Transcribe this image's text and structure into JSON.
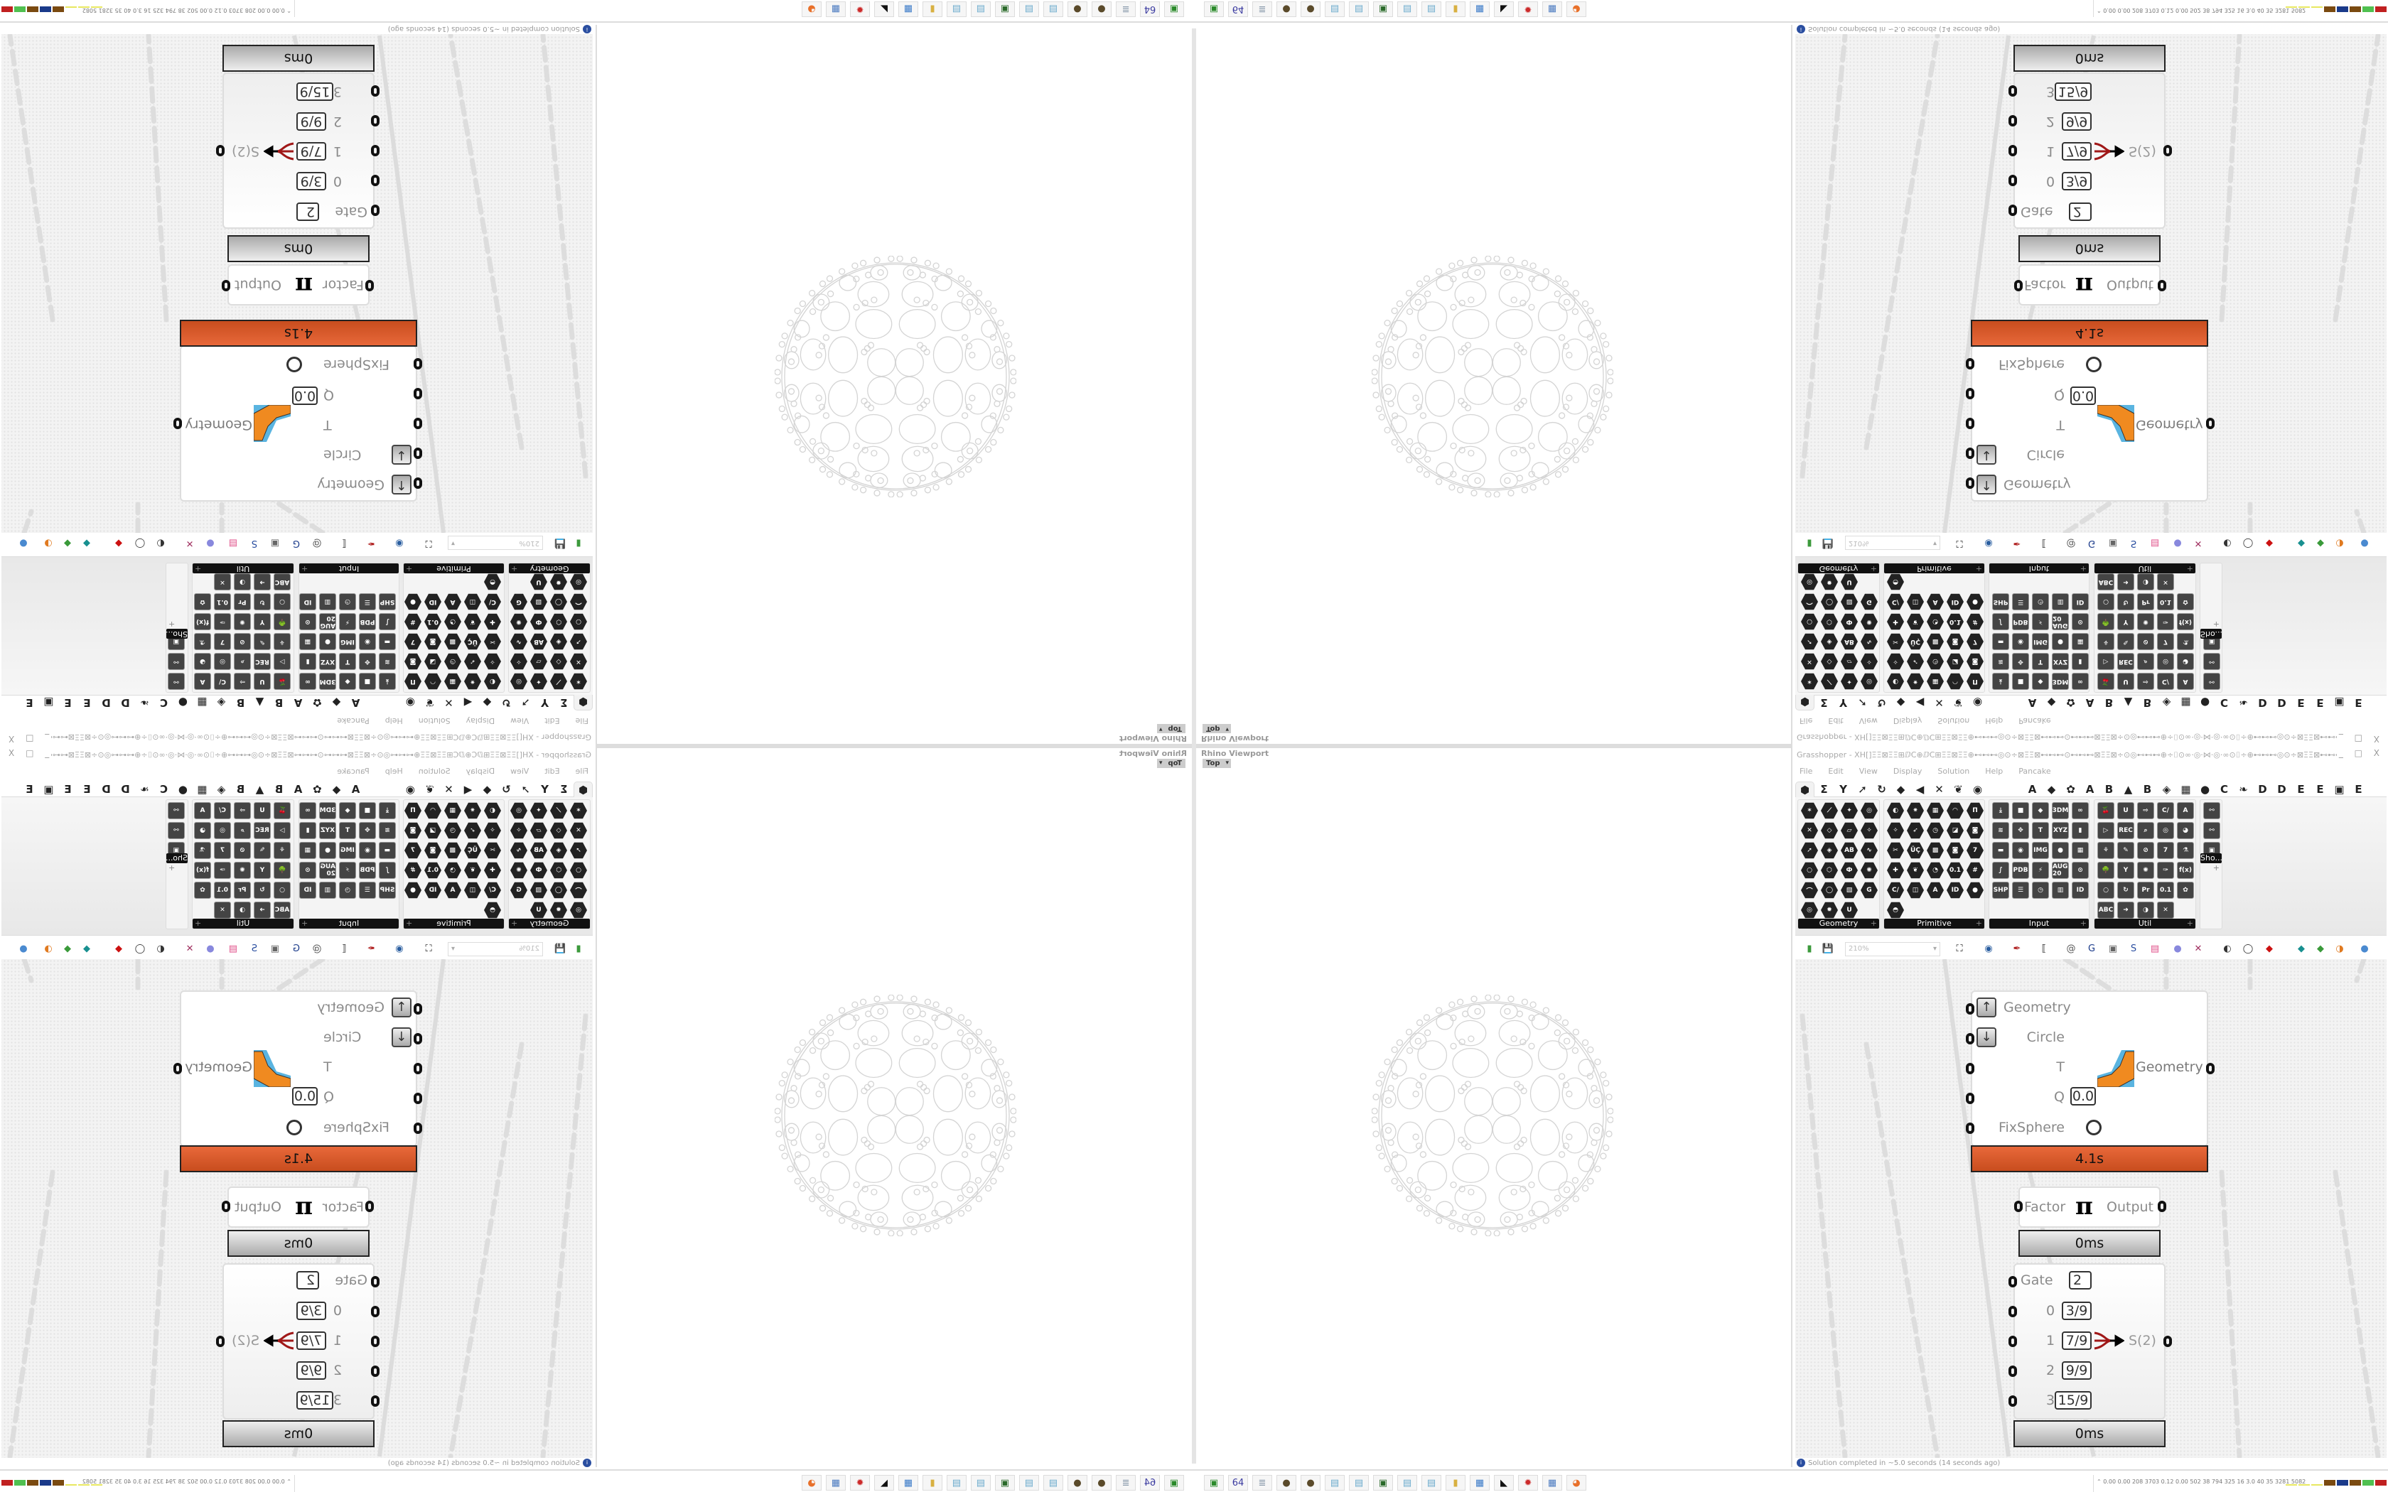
{
  "viewport": {
    "title": "Rhino Viewport",
    "view": "Top"
  },
  "grasshopper": {
    "title": "Grasshopper - XH[]ΞΞ⊠ΞΞ⊞ⅅC⊕ⅅC⊞ΞΞ⊠ΞΞ⊕⊷⊷⊷◎⊙÷⊠ΞΞ⊠⊷⊷⊷⊙⊷⊷⊷⊠ΞΞ⊠÷⊙◎⊷⊷⊷⊕÷⌷⊙∞·◎·⋈·◎·∞⊙⌷÷⊕⊷⊷⊷◎⊙÷⊠ΞΞ⊠⊷⊷⊷⊙⊷⊷⊷...",
    "window_controls": "_ □ X",
    "menu": [
      "File",
      "Edit",
      "View",
      "Display",
      "Solution",
      "Help",
      "Pancake"
    ],
    "tabs_icons": [
      "⬢",
      "Σ",
      "Y",
      "➚",
      "↻",
      "◆",
      "◀",
      "✕",
      "❦",
      "◉"
    ],
    "tabs_letters": [
      "A",
      "◆",
      "✿",
      "A",
      "B",
      "▲",
      "B",
      "◈",
      "▦",
      "●",
      "C",
      "❧",
      "D",
      "D",
      "E",
      "E",
      "▣",
      "E"
    ],
    "palette": [
      {
        "label": "Geometry",
        "cols": 4,
        "style": "hex",
        "icons": [
          "✶",
          "⟋",
          "✦",
          "◎",
          "✕",
          "◇",
          "▱",
          "✧",
          "➚",
          "◈",
          "AB",
          "∿",
          "○",
          "⬡",
          "Ф",
          "✺",
          "⌒",
          "◯",
          "▧",
          "G",
          "◎",
          "✹",
          "U"
        ]
      },
      {
        "label": "Primitive",
        "cols": 5,
        "style": "hex",
        "icons": [
          "◐",
          "✷",
          "▦",
          "◠",
          "Π",
          "✧",
          "➶",
          "◷",
          "◪",
          "◙",
          "✂",
          "ÜÇ",
          "▩",
          "◙",
          "7",
          "✚",
          "❦",
          "◔",
          "0.1",
          "#",
          "C/",
          "◫",
          "A",
          "ID",
          "●",
          "◓"
        ]
      },
      {
        "label": "Input",
        "cols": 5,
        "style": "sq",
        "icons": [
          "⤓",
          "■",
          "◆",
          "3DM",
          "∞",
          "≋",
          "✥",
          "T",
          "XYZ",
          "▮",
          "▬",
          "◉",
          "IMG",
          "●",
          "▦",
          "∫",
          "PDB",
          "⚡",
          "AUG 20",
          "⊙",
          "SHP",
          "☰",
          "◷",
          "▥",
          "ID"
        ]
      },
      {
        "label": "Util",
        "cols": 5,
        "style": "sq",
        "icons": [
          "🍒",
          "U",
          "⇨",
          "C/",
          "A",
          "▷",
          "REC",
          "⌕",
          "◎",
          "◕",
          "⚘",
          "✎",
          "⊘",
          "7",
          "⚗",
          "🌳",
          "Y",
          "✺",
          "✑",
          "f(x)",
          "○",
          "↻",
          "Pr",
          "0.1",
          "✿",
          "ABC",
          "➜",
          "◑",
          "✕"
        ]
      },
      {
        "label": "Sho...",
        "cols": 1,
        "style": "sq",
        "icons": [
          "⚯",
          "⚯",
          "▣"
        ]
      }
    ],
    "toolbar": {
      "zoom": "210%",
      "icons": [
        {
          "name": "new-file-icon",
          "glyph": "▮",
          "color": "#3c9a3c"
        },
        {
          "name": "save-icon",
          "glyph": "💾",
          "color": "#2a4ea0"
        },
        {
          "name": "zoom-extents-icon",
          "glyph": "⛶",
          "color": "#111"
        },
        {
          "name": "preview-eye-icon",
          "glyph": "◉",
          "color": "#2a5ea0"
        },
        {
          "name": "sketch-pen-icon",
          "glyph": "✒",
          "color": "#b02020"
        },
        {
          "name": "cluster-icon",
          "glyph": "⟦",
          "color": "#222"
        },
        {
          "name": "email-icon",
          "glyph": "@",
          "color": "#555"
        },
        {
          "name": "gha-icon",
          "glyph": "G",
          "color": "#1a3a8a"
        },
        {
          "name": "image-icon",
          "glyph": "▣",
          "color": "#666"
        },
        {
          "name": "search-icon",
          "glyph": "S",
          "color": "#2a4ea0"
        },
        {
          "name": "package-icon",
          "glyph": "▤",
          "color": "#e0508a"
        },
        {
          "name": "bulb-icon",
          "glyph": "●",
          "color": "#8888dd"
        },
        {
          "name": "wires-icon",
          "glyph": "✕",
          "color": "#a03060"
        },
        {
          "name": "shaded-icon",
          "glyph": "◐",
          "color": "#333"
        },
        {
          "name": "wireframe-icon",
          "glyph": "◯",
          "color": "#333"
        },
        {
          "name": "red-shape-icon",
          "glyph": "◆",
          "color": "#cc1111"
        },
        {
          "name": "teal-shape-icon",
          "glyph": "◆",
          "color": "#189090"
        },
        {
          "name": "green-shape-icon",
          "glyph": "◆",
          "color": "#3a9a3a"
        },
        {
          "name": "orange-sphere-icon",
          "glyph": "◑",
          "color": "#e07a20"
        },
        {
          "name": "blue-sphere-icon",
          "glyph": "●",
          "color": "#4a8ad0"
        }
      ]
    },
    "canvas": {
      "kangaroo": {
        "inputs": [
          "Geometry",
          "Circle",
          "T",
          "Q",
          "FixSphere"
        ],
        "q_value": "0.0",
        "output": "Geometry",
        "time": "4.1s"
      },
      "pi": {
        "input": "Factor",
        "symbol": "π",
        "output": "Output",
        "time": "0ms"
      },
      "gate": {
        "gate_label": "Gate",
        "gate_value": "2",
        "indices": [
          "0",
          "1",
          "2",
          "3"
        ],
        "values": [
          "3/9",
          "7/9",
          "9/9",
          "15/9"
        ],
        "output": "S(2)",
        "time": "0ms"
      }
    },
    "status": "Solution completed in ~5.0 seconds (14 seconds ago)"
  },
  "taskbar": {
    "apps": [
      {
        "name": "rhino-console-icon",
        "glyph": "▣",
        "color": "#2a8a2a"
      },
      {
        "name": "floppy-64-icon",
        "glyph": "64",
        "color": "#3a3aa0"
      },
      {
        "name": "scroll-icon",
        "glyph": "≣",
        "color": "#8899aa"
      },
      {
        "name": "grenade-icon",
        "glyph": "●",
        "color": "#5a4a2a"
      },
      {
        "name": "grenade-icon",
        "glyph": "●",
        "color": "#5a4a2a"
      },
      {
        "name": "notepad-icon",
        "glyph": "▤",
        "color": "#6aaacc"
      },
      {
        "name": "notepad-icon",
        "glyph": "▤",
        "color": "#6aaacc"
      },
      {
        "name": "monitor-icon",
        "glyph": "▣",
        "color": "#2a6a2a"
      },
      {
        "name": "notepad-icon",
        "glyph": "▤",
        "color": "#6aaacc"
      },
      {
        "name": "notepad-icon",
        "glyph": "▤",
        "color": "#6aaacc"
      },
      {
        "name": "folder-icon",
        "glyph": "▮",
        "color": "#d8b040"
      },
      {
        "name": "presentation-icon",
        "glyph": "▦",
        "color": "#3a7ac8"
      },
      {
        "name": "rhino-icon",
        "glyph": "◣",
        "color": "#111"
      },
      {
        "name": "red-app-icon",
        "glyph": "✹",
        "color": "#cc2a2a"
      },
      {
        "name": "calculator-icon",
        "glyph": "▦",
        "color": "#4a7ac0"
      },
      {
        "name": "firefox-icon",
        "glyph": "◕",
        "color": "#e8702a"
      }
    ],
    "tray_chevron": "⌃",
    "tray_stats": "0.00 0.00  208  3703 0.12  0.00  502  38  794  325  16  3.0  40  35  3281 5082",
    "tray_meters": [
      "#e8e860",
      "#e8e860",
      "#e8e860",
      "#7a4a10",
      "#1a3a8a",
      "#7a4a10",
      "#50c050",
      "#c02020"
    ]
  },
  "colors": {
    "timing_bar": "#e05a2a",
    "info": "#2a4ea0"
  }
}
